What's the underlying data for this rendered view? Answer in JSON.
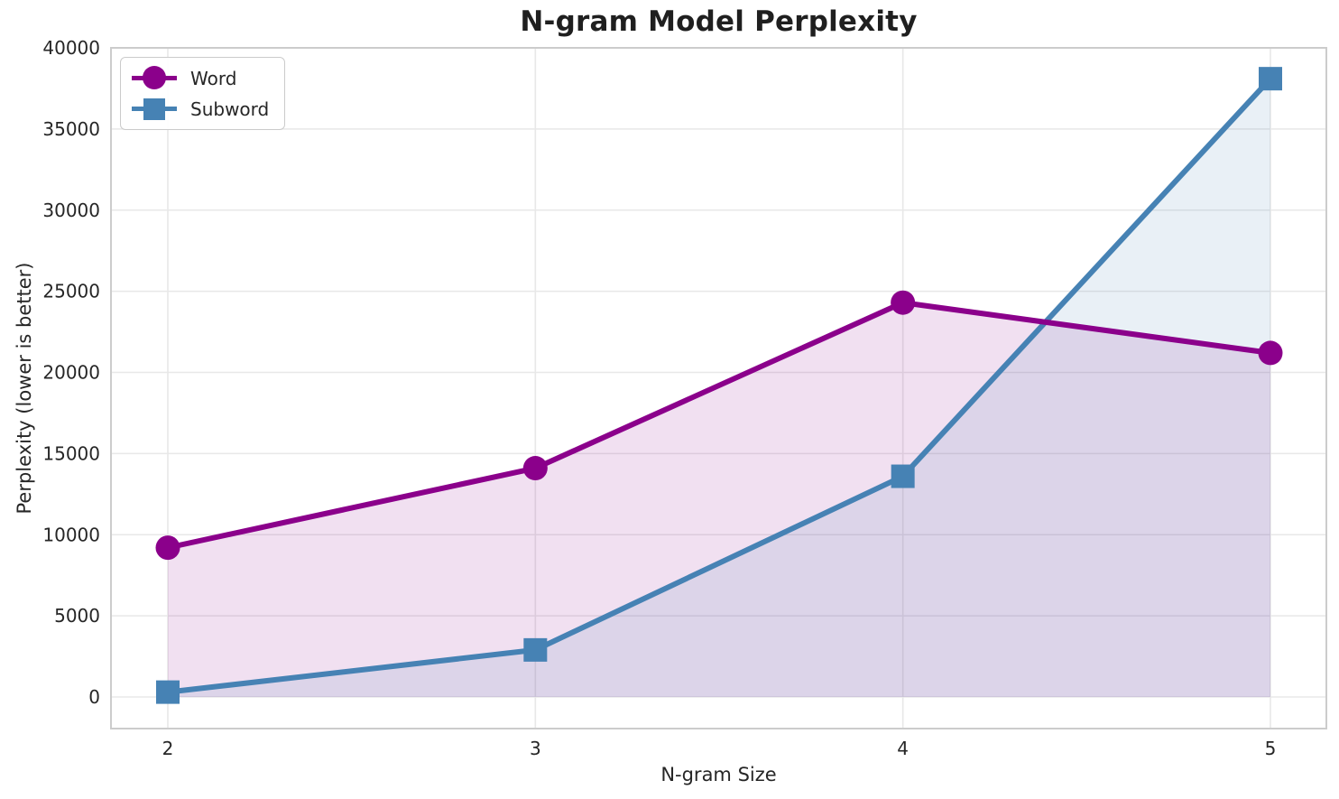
{
  "chart_data": {
    "type": "line",
    "title": "N-gram Model Perplexity",
    "xlabel": "N-gram Size",
    "ylabel": "Perplexity (lower is better)",
    "x": [
      2,
      3,
      4,
      5
    ],
    "xtick_labels": [
      "2",
      "3",
      "4",
      "5"
    ],
    "yticks": [
      0,
      5000,
      10000,
      15000,
      20000,
      25000,
      30000,
      35000,
      40000
    ],
    "xlim": [
      1.85,
      5.15
    ],
    "ylim": [
      -1950,
      40000
    ],
    "grid": true,
    "legend_position": "upper left",
    "series": [
      {
        "name": "Word",
        "marker": "circle",
        "color": "#8B008B",
        "fill_opacity": 0.12,
        "values": [
          9200,
          14100,
          24300,
          21200
        ]
      },
      {
        "name": "Subword",
        "marker": "square",
        "color": "#4682B4",
        "fill_opacity": 0.12,
        "values": [
          300,
          2900,
          13600,
          38100
        ]
      }
    ],
    "colors": {
      "text": "#262626",
      "grid": "#e8e8e8",
      "spine": "#cccccc",
      "background": "#ffffff"
    }
  }
}
